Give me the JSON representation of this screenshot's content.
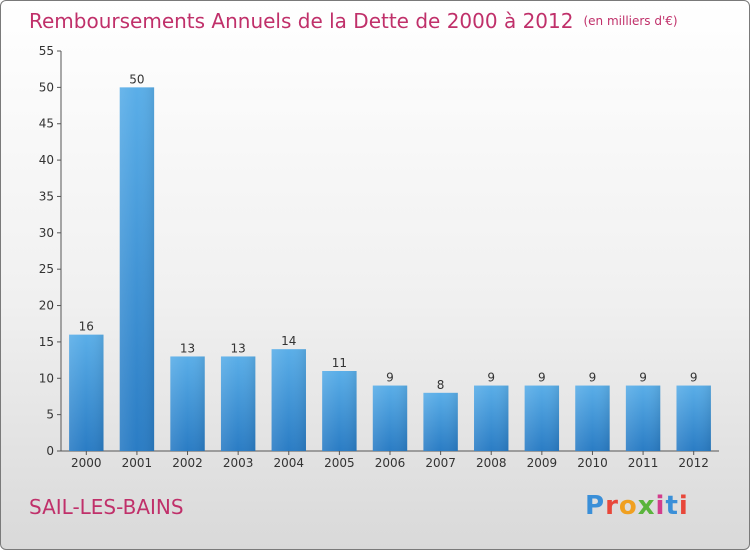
{
  "header": {
    "title": "Remboursements Annuels de la Dette de 2000 à 2012",
    "subtitle": "(en milliers d'€)"
  },
  "footer": {
    "commune": "SAIL-LES-BAINS",
    "logo_text": "Proxiti",
    "logo_colors": [
      "#3a8fd8",
      "#e8473a",
      "#f0a020",
      "#5ab43c",
      "#d23c8c",
      "#3a8fd8",
      "#e8473a"
    ]
  },
  "colors": {
    "title": "#c0306a",
    "bar_light": "#5aaee8",
    "bar_dark": "#2a7cc4",
    "axis": "#555555",
    "grid": "#cccccc"
  },
  "chart_data": {
    "type": "bar",
    "title": "Remboursements Annuels de la Dette de 2000 à 2012",
    "subtitle": "(en milliers d'€)",
    "categories": [
      "2000",
      "2001",
      "2002",
      "2003",
      "2004",
      "2005",
      "2006",
      "2007",
      "2008",
      "2009",
      "2010",
      "2011",
      "2012"
    ],
    "values": [
      16,
      50,
      13,
      13,
      14,
      11,
      9,
      8,
      9,
      9,
      9,
      9,
      9
    ],
    "ylim": [
      0,
      55
    ],
    "yticks": [
      0,
      5,
      10,
      15,
      20,
      25,
      30,
      35,
      40,
      45,
      50,
      55
    ],
    "grid": false
  }
}
